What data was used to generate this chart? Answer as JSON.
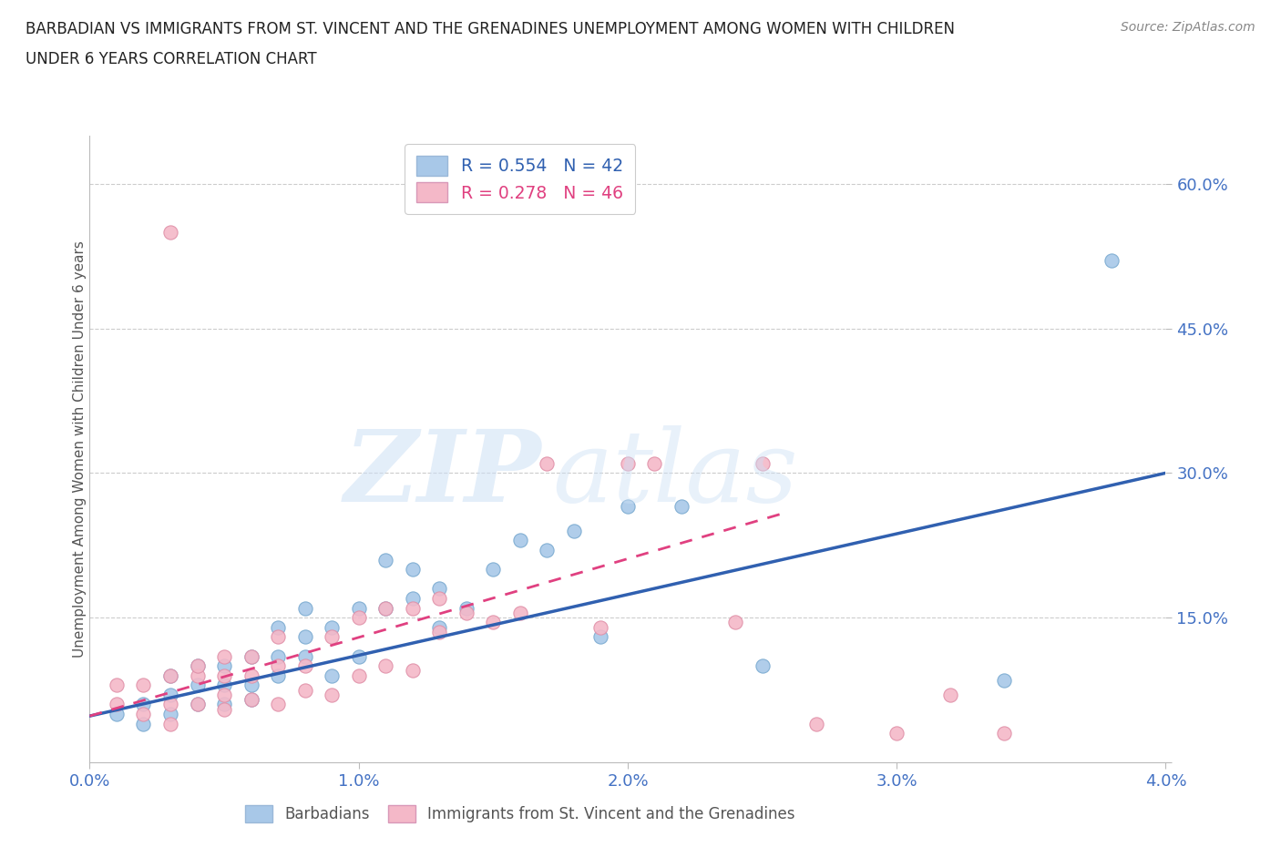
{
  "title_line1": "BARBADIAN VS IMMIGRANTS FROM ST. VINCENT AND THE GRENADINES UNEMPLOYMENT AMONG WOMEN WITH CHILDREN",
  "title_line2": "UNDER 6 YEARS CORRELATION CHART",
  "source": "Source: ZipAtlas.com",
  "ylabel": "Unemployment Among Women with Children Under 6 years",
  "xlim": [
    0.0,
    0.04
  ],
  "ylim": [
    0.0,
    0.65
  ],
  "xtick_vals": [
    0.0,
    0.01,
    0.02,
    0.03,
    0.04
  ],
  "xtick_labels": [
    "0.0%",
    "1.0%",
    "2.0%",
    "3.0%",
    "4.0%"
  ],
  "ytick_vals": [
    0.0,
    0.15,
    0.3,
    0.45,
    0.6
  ],
  "ytick_labels": [
    "",
    "15.0%",
    "30.0%",
    "45.0%",
    "60.0%"
  ],
  "legend_blue_R": "0.554",
  "legend_blue_N": "42",
  "legend_pink_R": "0.278",
  "legend_pink_N": "46",
  "blue_color": "#a8c8e8",
  "pink_color": "#f4b8c8",
  "blue_line_color": "#3060b0",
  "pink_line_color": "#e04080",
  "blue_scatter_x": [
    0.001,
    0.002,
    0.002,
    0.003,
    0.003,
    0.003,
    0.004,
    0.004,
    0.004,
    0.005,
    0.005,
    0.005,
    0.006,
    0.006,
    0.006,
    0.007,
    0.007,
    0.007,
    0.008,
    0.008,
    0.008,
    0.009,
    0.009,
    0.01,
    0.01,
    0.011,
    0.011,
    0.012,
    0.012,
    0.013,
    0.013,
    0.014,
    0.015,
    0.016,
    0.017,
    0.018,
    0.019,
    0.02,
    0.022,
    0.025,
    0.034,
    0.038
  ],
  "blue_scatter_y": [
    0.05,
    0.04,
    0.06,
    0.05,
    0.07,
    0.09,
    0.06,
    0.08,
    0.1,
    0.06,
    0.08,
    0.1,
    0.065,
    0.08,
    0.11,
    0.09,
    0.11,
    0.14,
    0.11,
    0.13,
    0.16,
    0.09,
    0.14,
    0.11,
    0.16,
    0.16,
    0.21,
    0.17,
    0.2,
    0.14,
    0.18,
    0.16,
    0.2,
    0.23,
    0.22,
    0.24,
    0.13,
    0.265,
    0.265,
    0.1,
    0.085,
    0.52
  ],
  "pink_scatter_x": [
    0.001,
    0.001,
    0.002,
    0.002,
    0.003,
    0.003,
    0.003,
    0.003,
    0.004,
    0.004,
    0.004,
    0.005,
    0.005,
    0.005,
    0.005,
    0.006,
    0.006,
    0.006,
    0.007,
    0.007,
    0.007,
    0.008,
    0.008,
    0.009,
    0.009,
    0.01,
    0.01,
    0.011,
    0.011,
    0.012,
    0.012,
    0.013,
    0.013,
    0.014,
    0.015,
    0.016,
    0.017,
    0.019,
    0.02,
    0.021,
    0.024,
    0.025,
    0.027,
    0.03,
    0.032,
    0.034
  ],
  "pink_scatter_y": [
    0.06,
    0.08,
    0.05,
    0.08,
    0.04,
    0.06,
    0.09,
    0.55,
    0.06,
    0.09,
    0.1,
    0.055,
    0.07,
    0.09,
    0.11,
    0.065,
    0.09,
    0.11,
    0.06,
    0.1,
    0.13,
    0.075,
    0.1,
    0.07,
    0.13,
    0.09,
    0.15,
    0.1,
    0.16,
    0.095,
    0.16,
    0.135,
    0.17,
    0.155,
    0.145,
    0.155,
    0.31,
    0.14,
    0.31,
    0.31,
    0.145,
    0.31,
    0.04,
    0.03,
    0.07,
    0.03
  ],
  "background_color": "#ffffff",
  "grid_color": "#cccccc",
  "blue_trend_x": [
    0.0,
    0.04
  ],
  "blue_trend_y": [
    0.048,
    0.3
  ],
  "pink_trend_x": [
    0.0,
    0.026
  ],
  "pink_trend_y": [
    0.048,
    0.26
  ]
}
